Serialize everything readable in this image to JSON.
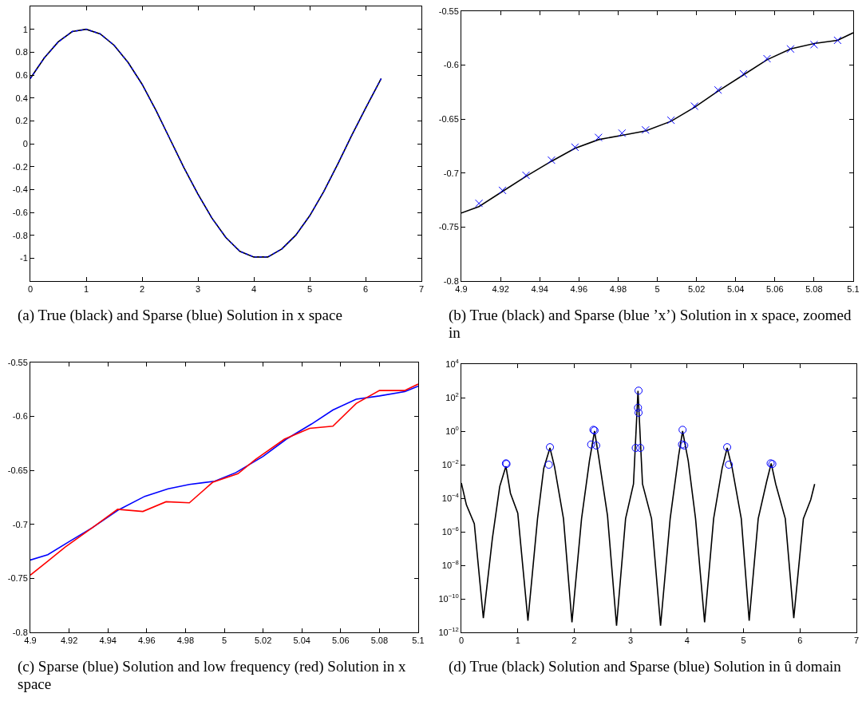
{
  "chart_data": [
    {
      "type": "line",
      "annotations": [
        "(a)  True (black) and Sparse (blue) Solution in x space"
      ],
      "xlim": [
        0,
        7
      ],
      "xticks": [
        0,
        1,
        2,
        3,
        4,
        5,
        6,
        7
      ],
      "ylim": [
        -1.2,
        1.2
      ],
      "yticks": [
        -1,
        -0.8,
        -0.6,
        -0.4,
        -0.2,
        0,
        0.2,
        0.4,
        0.6,
        0.8,
        1
      ],
      "grid": false,
      "x": [
        0,
        0.25,
        0.5,
        0.75,
        1,
        1.25,
        1.5,
        1.75,
        2,
        2.25,
        2.5,
        2.75,
        3,
        3.25,
        3.5,
        3.75,
        4,
        4.25,
        4.5,
        4.75,
        5,
        5.25,
        5.5,
        5.75,
        6,
        6.28
      ],
      "series": [
        {
          "color": "#000000",
          "values": [
            0.57,
            0.75,
            0.89,
            0.98,
            1.0,
            0.96,
            0.86,
            0.71,
            0.52,
            0.29,
            0.04,
            -0.21,
            -0.44,
            -0.65,
            -0.82,
            -0.94,
            -0.99,
            -0.99,
            -0.92,
            -0.8,
            -0.63,
            -0.42,
            -0.18,
            0.07,
            0.31,
            0.57
          ]
        },
        {
          "color": "#0000ff",
          "line_style": "dotted",
          "values": [
            0.57,
            0.75,
            0.89,
            0.98,
            1.0,
            0.96,
            0.86,
            0.71,
            0.52,
            0.29,
            0.04,
            -0.21,
            -0.44,
            -0.65,
            -0.82,
            -0.94,
            -0.99,
            -0.99,
            -0.92,
            -0.8,
            -0.63,
            -0.42,
            -0.18,
            0.07,
            0.31,
            0.57
          ]
        }
      ]
    },
    {
      "type": "line",
      "annotations": [
        "(b)  True (black) and Sparse (blue ’x’) Solution in x space, zoomed in"
      ],
      "xlim": [
        4.9,
        5.1
      ],
      "xticks": [
        4.9,
        4.92,
        4.94,
        4.96,
        4.98,
        5,
        5.02,
        5.04,
        5.06,
        5.08,
        5.1
      ],
      "ylim": [
        -0.8,
        -0.55
      ],
      "yticks": [
        -0.8,
        -0.75,
        -0.7,
        -0.65,
        -0.6,
        -0.55
      ],
      "grid": false,
      "series": [
        {
          "color": "#000000",
          "marker": "none",
          "x": [
            4.9,
            4.909,
            4.921,
            4.933,
            4.946,
            4.958,
            4.97,
            4.982,
            4.994,
            5.007,
            5.019,
            5.031,
            5.044,
            5.056,
            5.068,
            5.08,
            5.092,
            5.1
          ],
          "values": [
            -0.737,
            -0.731,
            -0.717,
            -0.703,
            -0.689,
            -0.677,
            -0.669,
            -0.665,
            -0.661,
            -0.652,
            -0.639,
            -0.624,
            -0.609,
            -0.595,
            -0.585,
            -0.58,
            -0.577,
            -0.57
          ]
        },
        {
          "type": "scatter",
          "color": "#0000ff",
          "marker": "cross",
          "x": [
            4.909,
            4.921,
            4.933,
            4.946,
            4.958,
            4.97,
            4.982,
            4.994,
            5.007,
            5.019,
            5.031,
            5.044,
            5.056,
            5.068,
            5.08,
            5.092
          ],
          "values": [
            -0.728,
            -0.716,
            -0.702,
            -0.688,
            -0.676,
            -0.667,
            -0.663,
            -0.66,
            -0.651,
            -0.638,
            -0.623,
            -0.608,
            -0.594,
            -0.585,
            -0.581,
            -0.577
          ]
        }
      ]
    },
    {
      "type": "line",
      "annotations": [
        "(c)  Sparse (blue) Solution and low frequency (red) Solution in x space"
      ],
      "xlim": [
        4.9,
        5.1
      ],
      "xticks": [
        4.9,
        4.92,
        4.94,
        4.96,
        4.98,
        5,
        5.02,
        5.04,
        5.06,
        5.08,
        5.1
      ],
      "ylim": [
        -0.8,
        -0.55
      ],
      "yticks": [
        -0.8,
        -0.75,
        -0.7,
        -0.65,
        -0.6,
        -0.55
      ],
      "grid": false,
      "series": [
        {
          "color": "#0000ff",
          "x": [
            4.9,
            4.909,
            4.92,
            4.932,
            4.945,
            4.959,
            4.971,
            4.982,
            4.995,
            5.006,
            5.02,
            5.032,
            5.045,
            5.056,
            5.068,
            5.08,
            5.093,
            5.1
          ],
          "values": [
            -0.733,
            -0.728,
            -0.716,
            -0.703,
            -0.687,
            -0.674,
            -0.667,
            -0.663,
            -0.66,
            -0.652,
            -0.637,
            -0.621,
            -0.607,
            -0.594,
            -0.584,
            -0.581,
            -0.577,
            -0.572
          ]
        },
        {
          "color": "#ff0000",
          "x": [
            4.9,
            4.909,
            4.918,
            4.932,
            4.945,
            4.958,
            4.97,
            4.982,
            4.994,
            5.007,
            5.016,
            5.031,
            5.044,
            5.056,
            5.068,
            5.08,
            5.093,
            5.1
          ],
          "values": [
            -0.747,
            -0.734,
            -0.721,
            -0.703,
            -0.686,
            -0.688,
            -0.679,
            -0.68,
            -0.661,
            -0.653,
            -0.64,
            -0.621,
            -0.611,
            -0.609,
            -0.588,
            -0.576,
            -0.576,
            -0.57
          ]
        }
      ]
    },
    {
      "type": "line",
      "annotations": [
        "(d)  True (black) Solution and Sparse (blue) Solution in û domain"
      ],
      "log": "y",
      "xlim": [
        0,
        7
      ],
      "xticks": [
        0,
        1,
        2,
        3,
        4,
        5,
        6,
        7
      ],
      "ylim": [
        1e-12,
        10000
      ],
      "yticks": [
        {
          "value": 1e-12,
          "label": "10$^{−12}$"
        },
        {
          "value": 1e-10,
          "label": "10$^{−10}$"
        },
        {
          "value": 1e-08,
          "label": "10$^{−8}$"
        },
        {
          "value": 1e-06,
          "label": "10$^{−6}$"
        },
        {
          "value": 0.0001,
          "label": "10$^{−4}$"
        },
        {
          "value": 0.01,
          "label": "10$^{−2}$"
        },
        {
          "value": 1,
          "label": "10$^{0}$"
        },
        {
          "value": 100,
          "label": "10$^{2}$"
        },
        {
          "value": 10000,
          "label": "10$^{4}$"
        }
      ],
      "grid": false,
      "series": [
        {
          "color": "#000000",
          "marker": "none",
          "x": [
            0,
            0.09,
            0.23,
            0.39,
            0.55,
            0.68,
            0.79,
            0.87,
            1.0,
            1.18,
            1.35,
            1.46,
            1.57,
            1.65,
            1.81,
            1.96,
            2.13,
            2.27,
            2.36,
            2.43,
            2.59,
            2.75,
            2.91,
            3.05,
            3.13,
            3.21,
            3.37,
            3.53,
            3.7,
            3.85,
            3.92,
            4.02,
            4.15,
            4.31,
            4.47,
            4.62,
            4.71,
            4.8,
            4.96,
            5.1,
            5.26,
            5.41,
            5.49,
            5.57,
            5.74,
            5.89,
            6.06,
            6.19,
            6.26
          ],
          "values": [
            0.0008,
            4e-05,
            3e-06,
            7e-12,
            4e-07,
            0.0005,
            0.008,
            0.0002,
            1.3e-05,
            5e-12,
            6e-06,
            0.006,
            0.1,
            0.008,
            6e-06,
            4e-12,
            6e-06,
            0.017,
            1,
            0.035,
            9e-06,
            2.5e-12,
            6e-06,
            0.0007,
            250,
            0.0007,
            6e-06,
            2.5e-12,
            6e-06,
            0.035,
            1,
            0.017,
            6e-06,
            4e-12,
            6e-06,
            0.006,
            0.1,
            0.006,
            6e-06,
            5e-12,
            6e-06,
            0.001,
            0.012,
            0.0007,
            6e-06,
            7e-12,
            6e-06,
            8e-05,
            0.0007
          ]
        },
        {
          "type": "scatter",
          "color": "#0000ff",
          "marker": "circle",
          "x": [
            0.79,
            0.8,
            1.57,
            1.55,
            2.34,
            2.36,
            2.3,
            2.39,
            3.14,
            3.13,
            3.14,
            3.09,
            3.17,
            3.92,
            3.91,
            3.95,
            4.71,
            4.74,
            5.48,
            5.51
          ],
          "values": [
            0.012,
            0.011,
            0.11,
            0.01,
            1.2,
            1.1,
            0.16,
            0.14,
            260,
            25,
            12.6,
            0.1,
            0.1,
            1.2,
            0.16,
            0.14,
            0.11,
            0.01,
            0.012,
            0.011
          ]
        }
      ]
    }
  ]
}
